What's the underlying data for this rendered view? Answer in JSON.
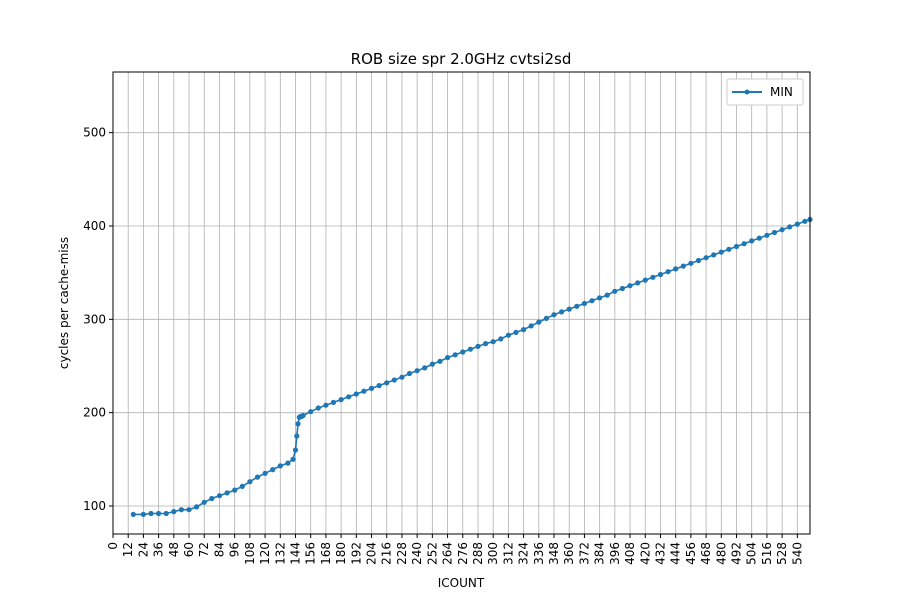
{
  "chart_data": {
    "type": "line",
    "title": "ROB size spr 2.0GHz cvtsi2sd",
    "xlabel": "ICOUNT",
    "ylabel": "cycles per cache-miss",
    "xlim": [
      0,
      550
    ],
    "ylim": [
      70,
      565
    ],
    "xticks": [
      0,
      12,
      24,
      36,
      48,
      60,
      72,
      84,
      96,
      108,
      120,
      132,
      144,
      156,
      168,
      180,
      192,
      204,
      216,
      228,
      240,
      252,
      264,
      276,
      288,
      300,
      312,
      324,
      336,
      348,
      360,
      372,
      384,
      396,
      408,
      420,
      432,
      444,
      456,
      468,
      480,
      492,
      504,
      516,
      528,
      540
    ],
    "yticks": [
      100,
      200,
      300,
      400,
      500
    ],
    "grid": true,
    "legend": {
      "position": "top-right",
      "entries": [
        "MIN"
      ]
    },
    "color": "#1f77b4",
    "series": [
      {
        "name": "MIN",
        "x": [
          16,
          24,
          30,
          36,
          42,
          48,
          54,
          60,
          66,
          72,
          78,
          84,
          90,
          96,
          102,
          108,
          114,
          120,
          126,
          132,
          138,
          142,
          144,
          145,
          146,
          147,
          148,
          149,
          150,
          156,
          162,
          168,
          174,
          180,
          186,
          192,
          198,
          204,
          210,
          216,
          222,
          228,
          234,
          240,
          246,
          252,
          258,
          264,
          270,
          276,
          282,
          288,
          294,
          300,
          306,
          312,
          318,
          324,
          330,
          336,
          342,
          348,
          354,
          360,
          366,
          372,
          378,
          384,
          390,
          396,
          402,
          408,
          414,
          420,
          426,
          432,
          438,
          444,
          450,
          456,
          462,
          468,
          474,
          480,
          486,
          492,
          498,
          504,
          510,
          516,
          522,
          528,
          534,
          540,
          546,
          550
        ],
        "y": [
          91,
          91,
          92,
          92,
          92,
          94,
          96,
          96,
          99,
          104,
          108,
          111,
          114,
          117,
          121,
          126,
          131,
          135,
          139,
          143,
          146,
          150,
          160,
          175,
          188,
          195,
          196,
          196,
          197,
          201,
          205,
          208,
          211,
          214,
          217,
          220,
          223,
          226,
          229,
          232,
          235,
          238,
          242,
          245,
          248,
          252,
          255,
          259,
          262,
          265,
          268,
          271,
          274,
          276,
          279,
          283,
          286,
          289,
          293,
          297,
          301,
          305,
          308,
          311,
          314,
          317,
          320,
          323,
          326,
          330,
          333,
          336,
          339,
          342,
          345,
          348,
          351,
          354,
          357,
          360,
          363,
          366,
          369,
          372,
          375,
          378,
          381,
          384,
          387,
          390,
          393,
          396,
          399,
          402,
          405,
          407
        ]
      }
    ]
  }
}
